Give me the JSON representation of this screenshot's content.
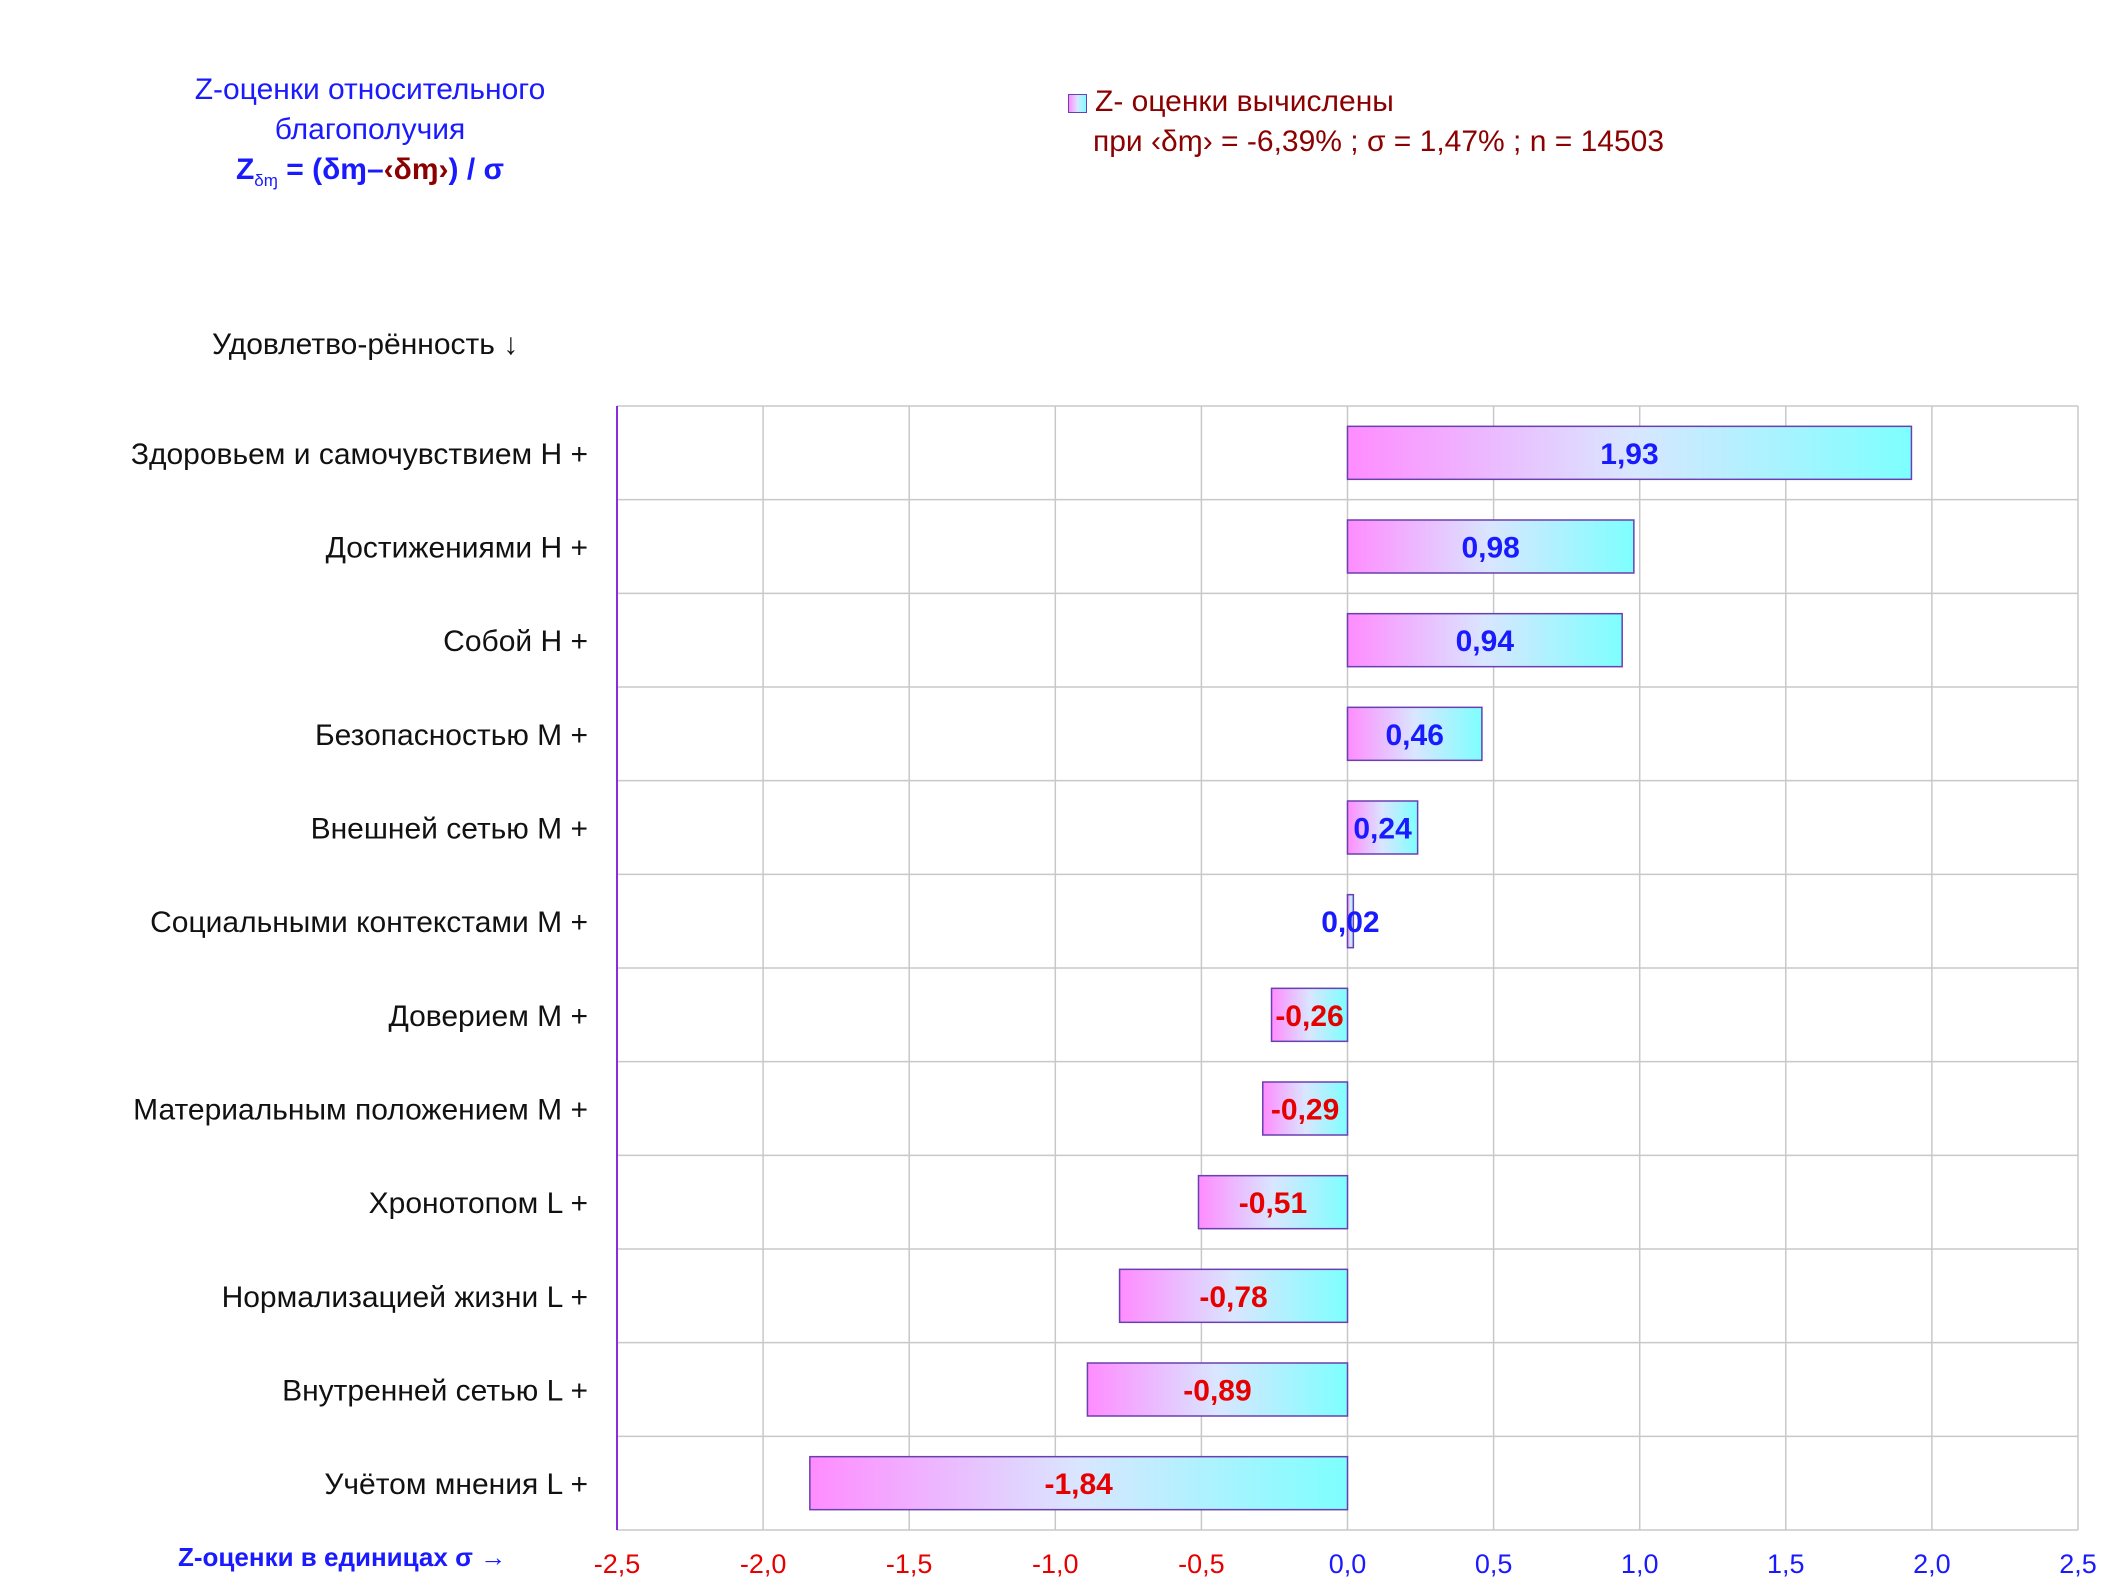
{
  "header": {
    "title_line1": "Z-оценки  относительного",
    "title_line2": "благополучия",
    "formula_z": "Z",
    "formula_sub": "δɱ",
    "formula_eq": " = (δɱ–",
    "formula_mean": "‹δɱ›",
    "formula_tail": ") / σ"
  },
  "legend": {
    "series_label": "Z- оценки вычислены",
    "stats_prefix": "при ",
    "stats_mean": "‹δɱ›",
    "stats_values": " = -6,39% ; σ = 1,47% ; n = 14503"
  },
  "category_heading": "Удовлетво-рённость ↓",
  "x_axis_caption": "Z-оценки в единицах σ →",
  "colors": {
    "bar_left": "#ff8cff",
    "bar_mid": "#d9e6ff",
    "bar_right": "#7dffff",
    "bar_stroke": "#6a3fb0",
    "positive_text": "#1a1aff",
    "negative_text": "#e60000",
    "grid": "#c8c8c8",
    "axis": "#8a2be2"
  },
  "chart_data": {
    "type": "bar",
    "orientation": "horizontal",
    "categories": [
      "Здоровьем и самочувствием  H +",
      "Достижениями  H +",
      "Собой  H +",
      "Безопасностью  M +",
      "Внешней сетью  M +",
      "Социальными контекстами  M +",
      "Доверием  M +",
      "Материальным положением  M +",
      "Хронотопом  L +",
      "Нормализацией жизни  L +",
      "Внутренней сетью  L +",
      "Учётом мнения  L +"
    ],
    "values": [
      1.93,
      0.98,
      0.94,
      0.46,
      0.24,
      0.02,
      -0.26,
      -0.29,
      -0.51,
      -0.78,
      -0.89,
      -1.84
    ],
    "value_labels": [
      "1,93",
      "0,98",
      "0,94",
      "0,46",
      "0,24",
      "0,02",
      "-0,26",
      "-0,29",
      "-0,51",
      "-0,78",
      "-0,89",
      "-1,84"
    ],
    "xlim": [
      -2.5,
      2.5
    ],
    "x_ticks": [
      -2.5,
      -2.0,
      -1.5,
      -1.0,
      -0.5,
      0.0,
      0.5,
      1.0,
      1.5,
      2.0,
      2.5
    ],
    "x_tick_labels": [
      "-2,5",
      "-2,0",
      "-1,5",
      "-1,0",
      "-0,5",
      "0,0",
      "0,5",
      "1,0",
      "1,5",
      "2,0",
      "2,5"
    ],
    "grid": true,
    "legend_position": "top-right"
  }
}
